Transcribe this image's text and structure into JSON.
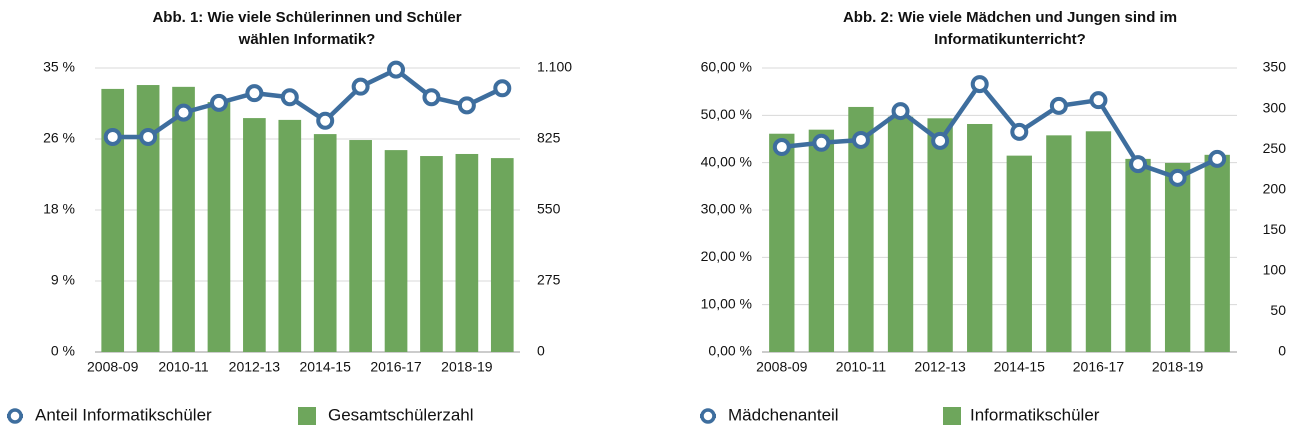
{
  "chart_data": [
    {
      "type": "combo",
      "title": [
        "Abb. 1: Wie viele Schülerinnen und Schüler",
        "wählen Informatik?"
      ],
      "categories": [
        "2008-09",
        null,
        "2010-11",
        null,
        "2012-13",
        null,
        "2014-15",
        null,
        "2016-17",
        null,
        "2018-19",
        null
      ],
      "series": [
        {
          "name": "Gesamtschülerzahl",
          "type": "bar",
          "axis": "y2",
          "color": "#6ea65c",
          "values": [
            1019,
            1034,
            1027,
            968,
            906,
            899,
            844,
            821,
            782,
            759,
            767,
            751
          ]
        },
        {
          "name": "Anteil Informatikschüler",
          "type": "line",
          "axis": "y",
          "color": "#3e6e9e",
          "values": [
            26.5,
            26.5,
            29.5,
            30.7,
            31.9,
            31.4,
            28.5,
            32.7,
            34.8,
            31.4,
            30.4,
            32.5
          ]
        }
      ],
      "ylim": [
        0,
        35
      ],
      "yticks": [
        {
          "value": 0,
          "label": "0 %"
        },
        {
          "value": 8.75,
          "label": "9 %"
        },
        {
          "value": 17.5,
          "label": "18 %"
        },
        {
          "value": 26.25,
          "label": "26 %"
        },
        {
          "value": 35,
          "label": "35 %"
        }
      ],
      "y2lim": [
        0,
        1100
      ],
      "y2ticks": [
        0,
        275,
        550,
        825,
        {
          "value": 1100,
          "label": "1.100"
        }
      ],
      "grid": true,
      "legend": "bottom"
    },
    {
      "type": "combo",
      "title": [
        "Abb. 2: Wie viele Mädchen und Jungen sind im",
        "Informatikunterricht?"
      ],
      "categories": [
        "2008-09",
        null,
        "2010-11",
        null,
        "2012-13",
        null,
        "2014-15",
        null,
        "2016-17",
        null,
        "2018-19",
        null
      ],
      "series": [
        {
          "name": "Informatikschüler",
          "type": "bar",
          "axis": "y2",
          "color": "#6ea65c",
          "values": [
            269,
            274,
            302,
            290,
            288,
            281,
            242,
            267,
            272,
            238,
            233,
            243
          ]
        },
        {
          "name": "Mädchenanteil",
          "type": "line",
          "axis": "y",
          "color": "#3e6e9e",
          "values": [
            43.3,
            44.2,
            44.8,
            50.9,
            44.6,
            56.6,
            46.5,
            52.0,
            53.2,
            39.7,
            36.8,
            40.8
          ]
        }
      ],
      "ylim": [
        0,
        60
      ],
      "yticks": [
        {
          "value": 0,
          "label": "0,00 %"
        },
        {
          "value": 10,
          "label": "10,00 %"
        },
        {
          "value": 20,
          "label": "20,00 %"
        },
        {
          "value": 30,
          "label": "30,00 %"
        },
        {
          "value": 40,
          "label": "40,00 %"
        },
        {
          "value": 50,
          "label": "50,00 %"
        },
        {
          "value": 60,
          "label": "60,00 %"
        }
      ],
      "y2lim": [
        0,
        350
      ],
      "y2ticks": [
        0,
        50,
        100,
        150,
        200,
        250,
        300,
        350
      ],
      "grid": true,
      "legend": "bottom"
    }
  ]
}
